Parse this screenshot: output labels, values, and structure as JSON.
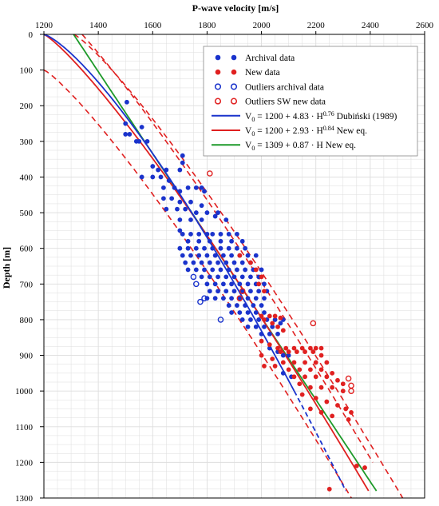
{
  "chart_data": {
    "type": "scatter",
    "title": "",
    "xlabel": "P-wave velocity [m/s]",
    "ylabel": "Depth [m]",
    "xlim": [
      1200,
      2600
    ],
    "ylim": [
      0,
      1300
    ],
    "y_inverted": true,
    "x_axis_position": "top",
    "x_ticks": [
      "1200",
      "1400",
      "1600",
      "1800",
      "2000",
      "2200",
      "2400",
      "2600"
    ],
    "y_ticks": [
      "0",
      "100",
      "200",
      "300",
      "400",
      "500",
      "600",
      "700",
      "800",
      "900",
      "1000",
      "1100",
      "1200",
      "1300"
    ],
    "grid": true,
    "legend_position": "top-right",
    "colors": {
      "blue": "#1a33cc",
      "red": "#e02020",
      "green": "#1e9a2a",
      "grid": "#dddddd"
    },
    "series": [
      {
        "name": "Archival data",
        "kind": "points",
        "marker": "filled-circle",
        "color": "#1a33cc",
        "points": [
          [
            1505,
            190
          ],
          [
            1500,
            250
          ],
          [
            1500,
            280
          ],
          [
            1515,
            280
          ],
          [
            1540,
            300
          ],
          [
            1560,
            260
          ],
          [
            1550,
            300
          ],
          [
            1580,
            300
          ],
          [
            1560,
            400
          ],
          [
            1600,
            400
          ],
          [
            1600,
            370
          ],
          [
            1620,
            380
          ],
          [
            1650,
            380
          ],
          [
            1630,
            400
          ],
          [
            1660,
            410
          ],
          [
            1640,
            430
          ],
          [
            1680,
            430
          ],
          [
            1700,
            440
          ],
          [
            1710,
            340
          ],
          [
            1710,
            360
          ],
          [
            1700,
            380
          ],
          [
            1730,
            430
          ],
          [
            1760,
            430
          ],
          [
            1780,
            430
          ],
          [
            1790,
            440
          ],
          [
            1640,
            460
          ],
          [
            1670,
            460
          ],
          [
            1700,
            470
          ],
          [
            1740,
            470
          ],
          [
            1780,
            480
          ],
          [
            1650,
            490
          ],
          [
            1690,
            490
          ],
          [
            1720,
            490
          ],
          [
            1760,
            500
          ],
          [
            1800,
            500
          ],
          [
            1840,
            500
          ],
          [
            1700,
            520
          ],
          [
            1740,
            520
          ],
          [
            1780,
            520
          ],
          [
            1830,
            510
          ],
          [
            1870,
            520
          ],
          [
            1700,
            550
          ],
          [
            1710,
            560
          ],
          [
            1740,
            560
          ],
          [
            1770,
            560
          ],
          [
            1800,
            560
          ],
          [
            1820,
            560
          ],
          [
            1850,
            560
          ],
          [
            1880,
            560
          ],
          [
            1910,
            560
          ],
          [
            1730,
            580
          ],
          [
            1770,
            580
          ],
          [
            1810,
            580
          ],
          [
            1850,
            580
          ],
          [
            1890,
            580
          ],
          [
            1930,
            580
          ],
          [
            1700,
            600
          ],
          [
            1730,
            600
          ],
          [
            1760,
            600
          ],
          [
            1790,
            600
          ],
          [
            1820,
            600
          ],
          [
            1850,
            600
          ],
          [
            1880,
            600
          ],
          [
            1910,
            600
          ],
          [
            1940,
            600
          ],
          [
            1710,
            620
          ],
          [
            1740,
            620
          ],
          [
            1770,
            620
          ],
          [
            1800,
            620
          ],
          [
            1830,
            620
          ],
          [
            1860,
            620
          ],
          [
            1890,
            620
          ],
          [
            1920,
            620
          ],
          [
            1950,
            620
          ],
          [
            1980,
            620
          ],
          [
            1720,
            640
          ],
          [
            1750,
            640
          ],
          [
            1780,
            640
          ],
          [
            1810,
            640
          ],
          [
            1840,
            640
          ],
          [
            1870,
            640
          ],
          [
            1900,
            640
          ],
          [
            1930,
            640
          ],
          [
            1960,
            640
          ],
          [
            1730,
            660
          ],
          [
            1760,
            660
          ],
          [
            1790,
            660
          ],
          [
            1820,
            660
          ],
          [
            1850,
            660
          ],
          [
            1880,
            660
          ],
          [
            1910,
            660
          ],
          [
            1940,
            660
          ],
          [
            1970,
            660
          ],
          [
            2000,
            660
          ],
          [
            1780,
            680
          ],
          [
            1810,
            680
          ],
          [
            1840,
            680
          ],
          [
            1870,
            680
          ],
          [
            1900,
            680
          ],
          [
            1930,
            680
          ],
          [
            1960,
            680
          ],
          [
            1990,
            680
          ],
          [
            1800,
            700
          ],
          [
            1830,
            700
          ],
          [
            1860,
            700
          ],
          [
            1890,
            700
          ],
          [
            1920,
            700
          ],
          [
            1950,
            700
          ],
          [
            1980,
            700
          ],
          [
            2010,
            700
          ],
          [
            1810,
            720
          ],
          [
            1840,
            720
          ],
          [
            1870,
            720
          ],
          [
            1900,
            720
          ],
          [
            1930,
            720
          ],
          [
            1960,
            720
          ],
          [
            1990,
            720
          ],
          [
            2020,
            720
          ],
          [
            1800,
            740
          ],
          [
            1830,
            740
          ],
          [
            1860,
            740
          ],
          [
            1890,
            740
          ],
          [
            1920,
            740
          ],
          [
            1950,
            740
          ],
          [
            1980,
            740
          ],
          [
            2010,
            740
          ],
          [
            1880,
            760
          ],
          [
            1910,
            760
          ],
          [
            1940,
            760
          ],
          [
            1970,
            760
          ],
          [
            2000,
            760
          ],
          [
            1890,
            780
          ],
          [
            1920,
            780
          ],
          [
            1950,
            780
          ],
          [
            1980,
            780
          ],
          [
            2010,
            780
          ],
          [
            1930,
            800
          ],
          [
            1960,
            800
          ],
          [
            1990,
            800
          ],
          [
            2020,
            800
          ],
          [
            2050,
            800
          ],
          [
            2080,
            800
          ],
          [
            1950,
            820
          ],
          [
            1980,
            820
          ],
          [
            2010,
            820
          ],
          [
            2040,
            820
          ],
          [
            2070,
            810
          ],
          [
            2000,
            840
          ],
          [
            2030,
            840
          ],
          [
            2060,
            840
          ],
          [
            2030,
            880
          ],
          [
            2060,
            890
          ],
          [
            2080,
            900
          ],
          [
            2100,
            900
          ],
          [
            2080,
            950
          ],
          [
            2110,
            960
          ]
        ]
      },
      {
        "name": "New data",
        "kind": "points",
        "marker": "filled-circle",
        "color": "#e02020",
        "points": [
          [
            1920,
            620
          ],
          [
            1960,
            640
          ],
          [
            1980,
            660
          ],
          [
            2000,
            680
          ],
          [
            1990,
            700
          ],
          [
            2010,
            720
          ],
          [
            2000,
            790
          ],
          [
            2030,
            790
          ],
          [
            2050,
            790
          ],
          [
            2070,
            795
          ],
          [
            2010,
            800
          ],
          [
            2040,
            810
          ],
          [
            2060,
            820
          ],
          [
            2080,
            830
          ],
          [
            2000,
            860
          ],
          [
            2030,
            870
          ],
          [
            2060,
            880
          ],
          [
            2090,
            880
          ],
          [
            2120,
            880
          ],
          [
            2150,
            880
          ],
          [
            2180,
            880
          ],
          [
            2200,
            880
          ],
          [
            2220,
            880
          ],
          [
            2070,
            890
          ],
          [
            2100,
            890
          ],
          [
            2130,
            890
          ],
          [
            2160,
            890
          ],
          [
            2190,
            890
          ],
          [
            2220,
            900
          ],
          [
            2000,
            900
          ],
          [
            2040,
            910
          ],
          [
            2080,
            920
          ],
          [
            2120,
            920
          ],
          [
            2160,
            920
          ],
          [
            2200,
            920
          ],
          [
            2240,
            920
          ],
          [
            2010,
            930
          ],
          [
            2050,
            930
          ],
          [
            2100,
            940
          ],
          [
            2140,
            940
          ],
          [
            2180,
            940
          ],
          [
            2220,
            940
          ],
          [
            2260,
            950
          ],
          [
            2120,
            960
          ],
          [
            2160,
            960
          ],
          [
            2200,
            960
          ],
          [
            2240,
            960
          ],
          [
            2280,
            970
          ],
          [
            2300,
            980
          ],
          [
            2140,
            980
          ],
          [
            2180,
            990
          ],
          [
            2220,
            990
          ],
          [
            2260,
            990
          ],
          [
            2300,
            1000
          ],
          [
            2150,
            1010
          ],
          [
            2200,
            1020
          ],
          [
            2240,
            1030
          ],
          [
            2280,
            1040
          ],
          [
            2310,
            1050
          ],
          [
            2330,
            1060
          ],
          [
            2180,
            1050
          ],
          [
            2220,
            1060
          ],
          [
            2260,
            1070
          ],
          [
            2320,
            1080
          ],
          [
            2350,
            1210
          ],
          [
            2380,
            1215
          ],
          [
            2250,
            1275
          ]
        ]
      },
      {
        "name": "Outliers archival data",
        "kind": "points",
        "marker": "open-circle",
        "color": "#1a33cc",
        "points": [
          [
            1750,
            680
          ],
          [
            1760,
            700
          ],
          [
            1775,
            750
          ],
          [
            1790,
            740
          ],
          [
            1850,
            800
          ]
        ]
      },
      {
        "name": "Outliers SW new data",
        "kind": "points",
        "marker": "open-circle",
        "color": "#e02020",
        "points": [
          [
            1810,
            390
          ],
          [
            1930,
            720
          ],
          [
            1920,
            740
          ],
          [
            2190,
            810
          ],
          [
            2320,
            965
          ],
          [
            2330,
            985
          ],
          [
            2330,
            1000
          ]
        ]
      },
      {
        "name": "Dubiński (1989)",
        "kind": "curve",
        "color": "#1a33cc",
        "style": "solid",
        "equation": "V0 = 1200 + 4.83 · H^0.76",
        "solid_to_depth": 1000,
        "dashed_to_depth": 1280
      },
      {
        "name": "New eq.",
        "kind": "curve",
        "color": "#e02020",
        "style": "solid",
        "equation": "V0 = 1200 + 2.93 · H^0.84",
        "solid_to_depth": 1280,
        "bounds": {
          "style": "dashed",
          "offset_velocity": 110,
          "offset_depth": 100
        }
      },
      {
        "name": "New eq.",
        "kind": "curve",
        "color": "#1e9a2a",
        "style": "solid",
        "equation": "V0 = 1309 + 0.87 · H",
        "solid_to_depth": 1280
      }
    ],
    "legend": {
      "entries": [
        {
          "label": "Archival data",
          "marker": "filled",
          "color": "#1a33cc"
        },
        {
          "label": "New data",
          "marker": "filled",
          "color": "#e02020"
        },
        {
          "label": "Outliers archival data",
          "marker": "open",
          "color": "#1a33cc"
        },
        {
          "label": "Outliers SW new data",
          "marker": "open",
          "color": "#e02020"
        },
        {
          "label_pre": "V",
          "label_sub": "0",
          "label_mid": " = 1200 + 4.83 · H",
          "label_sup": "0.76",
          "label_post": "  Dubiński (1989)",
          "line": "#1a33cc"
        },
        {
          "label_pre": "V",
          "label_sub": "0",
          "label_mid": " = 1200 + 2.93 · H",
          "label_sup": "0.84",
          "label_post": "  New eq.",
          "line": "#e02020"
        },
        {
          "label_pre": "V",
          "label_sub": "0",
          "label_mid": " = 1309 + 0.87 · H",
          "label_sup": "",
          "label_post": "      New eq.",
          "line": "#1e9a2a"
        }
      ]
    }
  }
}
